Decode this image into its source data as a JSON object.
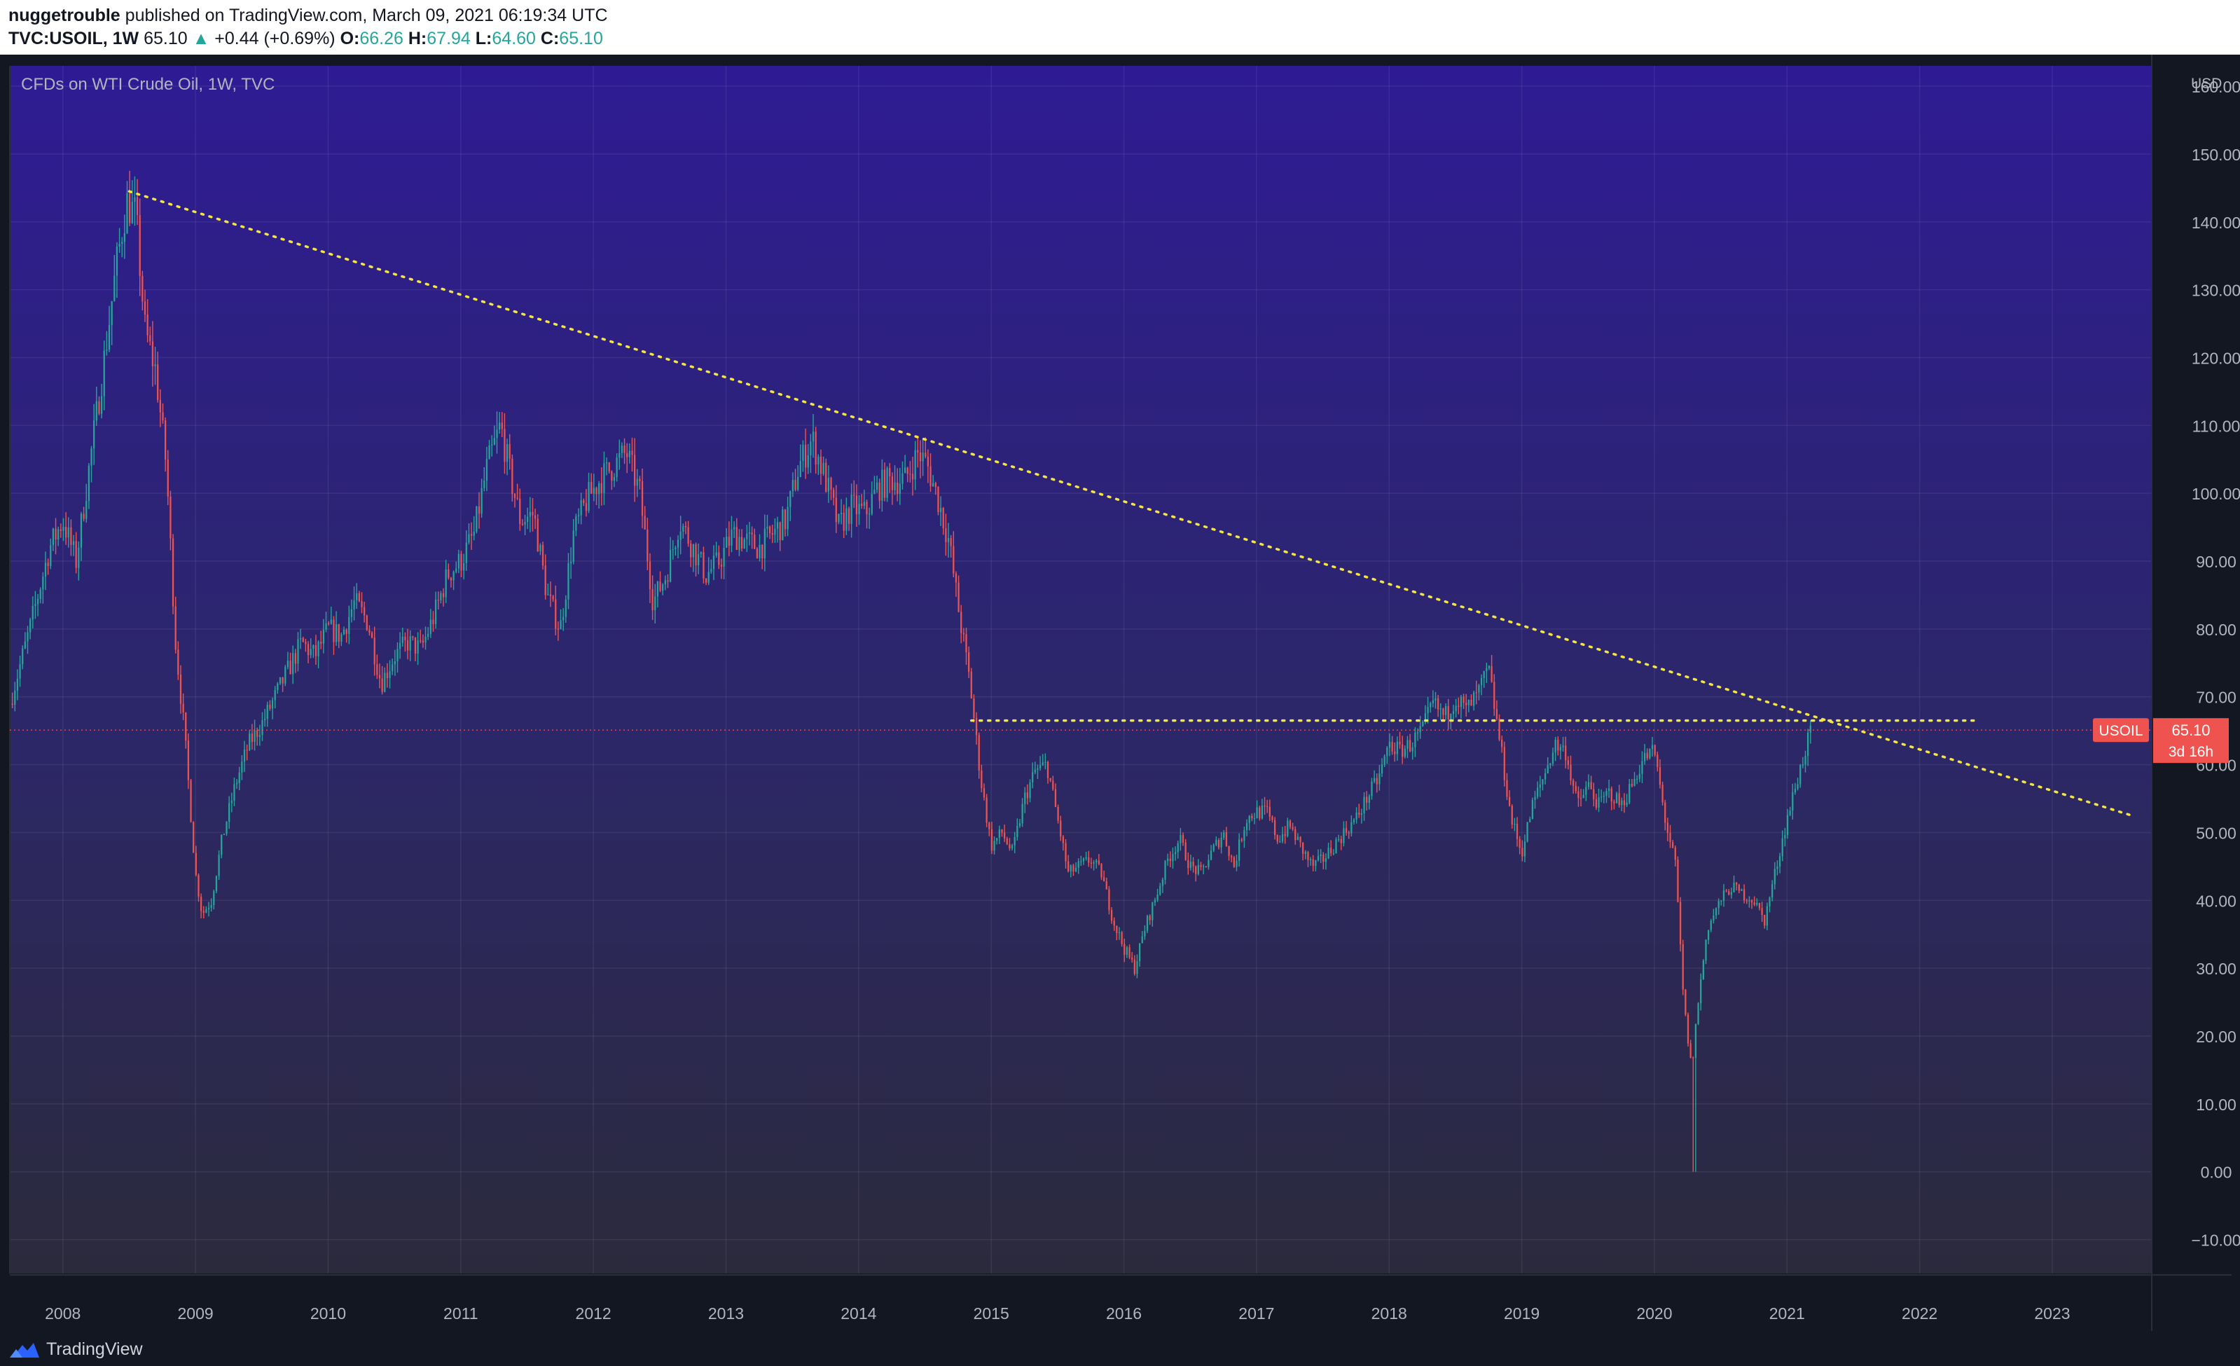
{
  "header": {
    "author": "nuggetrouble",
    "published_text": "published on TradingView.com, March 09, 2021 06:19:34 UTC",
    "symbol": "TVC:USOIL, 1W",
    "last": "65.10",
    "change": "+0.44 (+0.69%)",
    "o_label": "O:",
    "o": "66.26",
    "h_label": "H:",
    "h": "67.94",
    "l_label": "L:",
    "l": "64.60",
    "c_label": "C:",
    "c": "65.10"
  },
  "footer": {
    "brand": "TradingView"
  },
  "colors": {
    "up": "#26a69a",
    "down": "#ef5350",
    "trend": "#f5e642",
    "bg_top": "#2e1b94",
    "bg_bottom": "#2b2a3c",
    "axis_bg": "#131722",
    "axis_text": "#b2b5be",
    "grid": "#ffffff"
  },
  "chart_data": {
    "type": "candlestick",
    "title": "CFDs on WTI Crude Oil, 1W, TVC",
    "currency": "USD",
    "ylim": [
      -15,
      163
    ],
    "xlim": [
      2007.6,
      2023.75
    ],
    "y_ticks": [
      "160.00",
      "150.00",
      "140.00",
      "130.00",
      "120.00",
      "110.00",
      "100.00",
      "90.00",
      "80.00",
      "70.00",
      "60.00",
      "50.00",
      "40.00",
      "30.00",
      "20.00",
      "10.00",
      "0.00",
      "−10.00"
    ],
    "x_ticks": [
      "2008",
      "2009",
      "2010",
      "2011",
      "2012",
      "2013",
      "2014",
      "2015",
      "2016",
      "2017",
      "2018",
      "2019",
      "2020",
      "2021",
      "2022",
      "2023"
    ],
    "price_label": {
      "symbol": "USOIL",
      "value": "65.10",
      "countdown": "3d 16h",
      "price": 65.1
    },
    "trendlines": [
      {
        "name": "descending-resistance",
        "x": [
          2008.5,
          2023.6
        ],
        "y": [
          144.5,
          52.5
        ]
      },
      {
        "name": "horizontal-resistance",
        "x": [
          2014.85,
          2022.45
        ],
        "y": [
          66.5,
          66.5
        ]
      }
    ],
    "series_anchors": [
      [
        2007.6,
        69
      ],
      [
        2007.75,
        80
      ],
      [
        2007.9,
        92
      ],
      [
        2008.0,
        96
      ],
      [
        2008.1,
        90
      ],
      [
        2008.2,
        104
      ],
      [
        2008.3,
        118
      ],
      [
        2008.4,
        133
      ],
      [
        2008.48,
        143
      ],
      [
        2008.55,
        141
      ],
      [
        2008.62,
        124
      ],
      [
        2008.7,
        118
      ],
      [
        2008.78,
        104
      ],
      [
        2008.85,
        78
      ],
      [
        2008.92,
        64
      ],
      [
        2009.0,
        44
      ],
      [
        2009.05,
        38
      ],
      [
        2009.12,
        40
      ],
      [
        2009.2,
        49
      ],
      [
        2009.3,
        57
      ],
      [
        2009.4,
        63
      ],
      [
        2009.5,
        66
      ],
      [
        2009.6,
        70
      ],
      [
        2009.7,
        74
      ],
      [
        2009.8,
        78
      ],
      [
        2009.9,
        76
      ],
      [
        2010.0,
        80
      ],
      [
        2010.1,
        79
      ],
      [
        2010.2,
        84
      ],
      [
        2010.3,
        81
      ],
      [
        2010.4,
        72
      ],
      [
        2010.5,
        76
      ],
      [
        2010.6,
        78
      ],
      [
        2010.7,
        77
      ],
      [
        2010.8,
        82
      ],
      [
        2010.9,
        88
      ],
      [
        2011.0,
        90
      ],
      [
        2011.1,
        94
      ],
      [
        2011.2,
        104
      ],
      [
        2011.3,
        110
      ],
      [
        2011.38,
        102
      ],
      [
        2011.45,
        96
      ],
      [
        2011.55,
        97
      ],
      [
        2011.65,
        85
      ],
      [
        2011.75,
        80
      ],
      [
        2011.85,
        94
      ],
      [
        2011.95,
        99
      ],
      [
        2012.05,
        102
      ],
      [
        2012.15,
        104
      ],
      [
        2012.25,
        106
      ],
      [
        2012.35,
        100
      ],
      [
        2012.45,
        84
      ],
      [
        2012.55,
        88
      ],
      [
        2012.65,
        96
      ],
      [
        2012.75,
        92
      ],
      [
        2012.85,
        88
      ],
      [
        2012.95,
        90
      ],
      [
        2013.05,
        94
      ],
      [
        2013.15,
        93
      ],
      [
        2013.25,
        92
      ],
      [
        2013.35,
        94
      ],
      [
        2013.45,
        96
      ],
      [
        2013.55,
        104
      ],
      [
        2013.65,
        108
      ],
      [
        2013.75,
        102
      ],
      [
        2013.85,
        95
      ],
      [
        2013.95,
        98
      ],
      [
        2014.05,
        97
      ],
      [
        2014.15,
        101
      ],
      [
        2014.25,
        102
      ],
      [
        2014.35,
        102
      ],
      [
        2014.45,
        106
      ],
      [
        2014.52,
        104
      ],
      [
        2014.6,
        99
      ],
      [
        2014.68,
        93
      ],
      [
        2014.76,
        82
      ],
      [
        2014.84,
        72
      ],
      [
        2014.92,
        58
      ],
      [
        2015.0,
        48
      ],
      [
        2015.08,
        50
      ],
      [
        2015.16,
        47
      ],
      [
        2015.25,
        55
      ],
      [
        2015.33,
        59
      ],
      [
        2015.42,
        60
      ],
      [
        2015.5,
        52
      ],
      [
        2015.58,
        44
      ],
      [
        2015.66,
        45
      ],
      [
        2015.75,
        46
      ],
      [
        2015.83,
        44
      ],
      [
        2015.92,
        37
      ],
      [
        2016.0,
        33
      ],
      [
        2016.08,
        30
      ],
      [
        2016.16,
        36
      ],
      [
        2016.25,
        41
      ],
      [
        2016.33,
        46
      ],
      [
        2016.42,
        49
      ],
      [
        2016.5,
        45
      ],
      [
        2016.58,
        44
      ],
      [
        2016.66,
        47
      ],
      [
        2016.75,
        50
      ],
      [
        2016.83,
        45
      ],
      [
        2016.92,
        52
      ],
      [
        2017.0,
        53
      ],
      [
        2017.08,
        53
      ],
      [
        2017.16,
        49
      ],
      [
        2017.25,
        51
      ],
      [
        2017.33,
        48
      ],
      [
        2017.42,
        45
      ],
      [
        2017.5,
        46
      ],
      [
        2017.58,
        48
      ],
      [
        2017.66,
        50
      ],
      [
        2017.75,
        52
      ],
      [
        2017.83,
        55
      ],
      [
        2017.92,
        58
      ],
      [
        2018.0,
        63
      ],
      [
        2018.08,
        62
      ],
      [
        2018.16,
        63
      ],
      [
        2018.25,
        65
      ],
      [
        2018.33,
        69
      ],
      [
        2018.42,
        67
      ],
      [
        2018.5,
        70
      ],
      [
        2018.58,
        68
      ],
      [
        2018.66,
        70
      ],
      [
        2018.75,
        74
      ],
      [
        2018.83,
        64
      ],
      [
        2018.92,
        52
      ],
      [
        2019.0,
        47
      ],
      [
        2019.08,
        54
      ],
      [
        2019.16,
        58
      ],
      [
        2019.25,
        63
      ],
      [
        2019.33,
        62
      ],
      [
        2019.42,
        54
      ],
      [
        2019.5,
        57
      ],
      [
        2019.58,
        54
      ],
      [
        2019.66,
        56
      ],
      [
        2019.75,
        54
      ],
      [
        2019.83,
        57
      ],
      [
        2019.92,
        61
      ],
      [
        2020.0,
        62
      ],
      [
        2020.08,
        52
      ],
      [
        2020.16,
        45
      ],
      [
        2020.22,
        25
      ],
      [
        2020.28,
        15
      ],
      [
        2020.33,
        25
      ],
      [
        2020.4,
        36
      ],
      [
        2020.5,
        40
      ],
      [
        2020.58,
        42
      ],
      [
        2020.66,
        41
      ],
      [
        2020.75,
        40
      ],
      [
        2020.83,
        37
      ],
      [
        2020.92,
        45
      ],
      [
        2021.0,
        52
      ],
      [
        2021.08,
        58
      ],
      [
        2021.15,
        63
      ],
      [
        2021.19,
        65.1
      ]
    ]
  }
}
